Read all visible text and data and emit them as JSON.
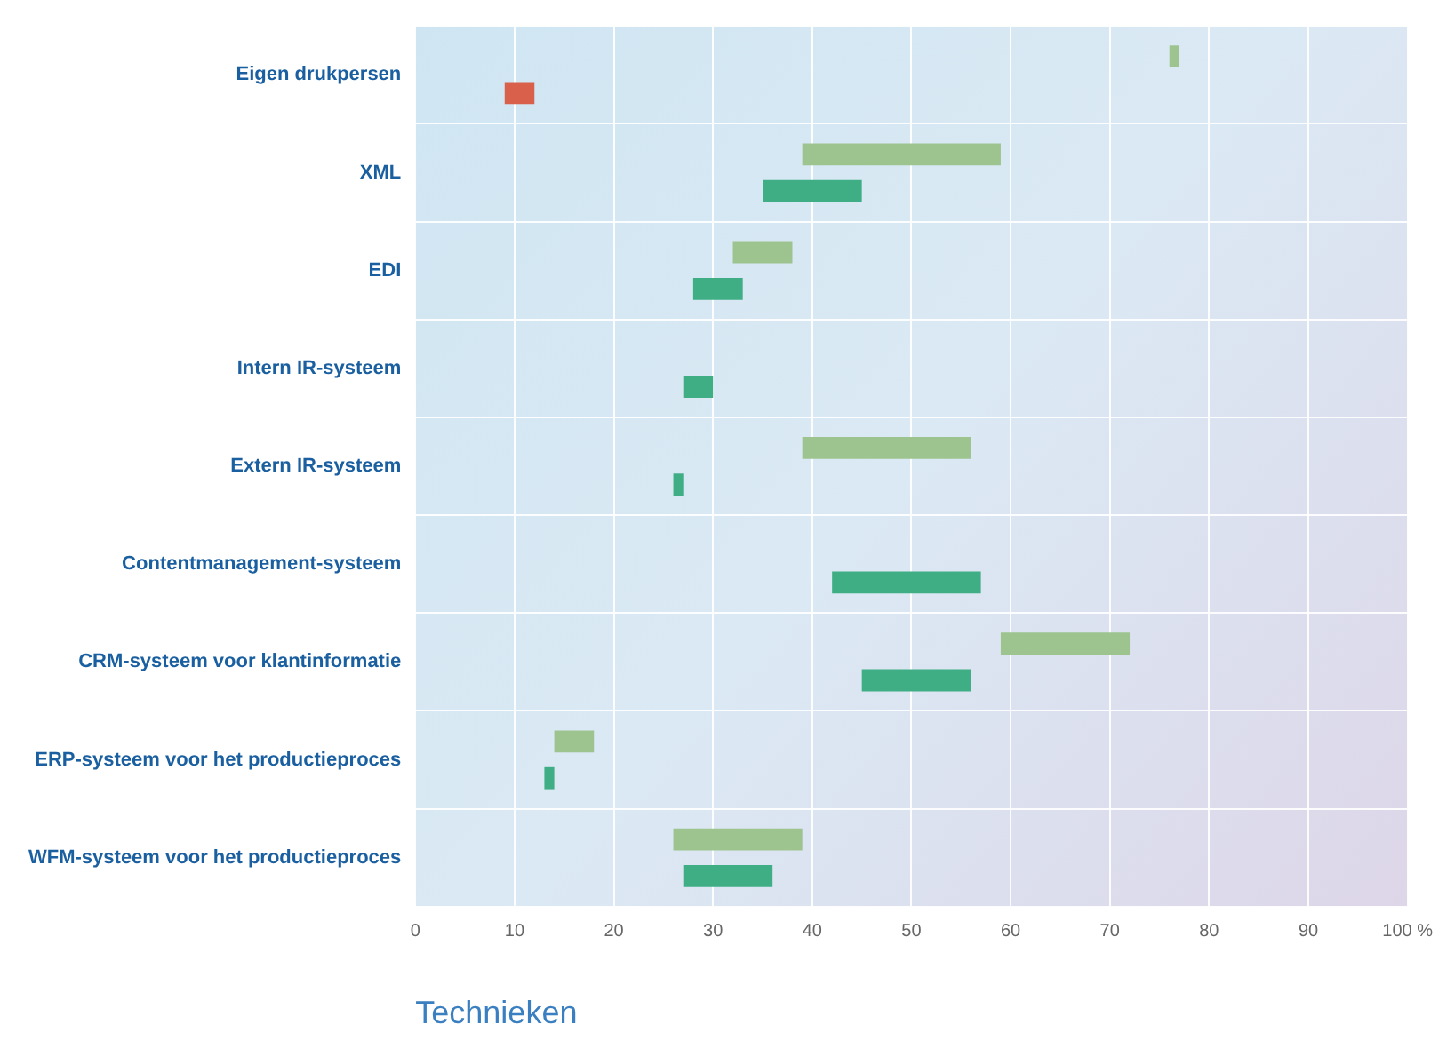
{
  "chart_data": {
    "type": "bar",
    "orientation": "horizontal",
    "xlabel": "Technieken",
    "categories": [
      "Eigen drukpersen",
      "XML",
      "EDI",
      "Intern IR-systeem",
      "Extern IR-systeem",
      "Contentmanagement-systeem",
      "CRM-systeem voor klantinformatie",
      "ERP-systeem voor het productieproces",
      "WFM-systeem voor het productieproces"
    ],
    "series": [
      {
        "color": "#9dc48f",
        "base": [
          76,
          39,
          32,
          null,
          39,
          null,
          59,
          14,
          26
        ],
        "values": [
          1,
          20,
          6,
          null,
          17,
          null,
          13,
          4,
          13
        ]
      },
      {
        "color": "#3fae85",
        "colors": [
          "#d9614b",
          "#3fae85",
          "#3fae85",
          "#3fae85",
          "#3fae85",
          "#3fae85",
          "#3fae85",
          "#3fae85",
          "#3fae85"
        ],
        "base": [
          12,
          35,
          28,
          27,
          26,
          42,
          45,
          13,
          27
        ],
        "values": [
          -3,
          10,
          5,
          3,
          1,
          15,
          11,
          1,
          9
        ]
      }
    ],
    "xlim": [
      0,
      100
    ],
    "xticks": [
      0,
      10,
      20,
      30,
      40,
      50,
      60,
      70,
      80,
      90,
      {
        "value": 100,
        "label": "100 %"
      }
    ],
    "grid": true,
    "legend": false
  }
}
